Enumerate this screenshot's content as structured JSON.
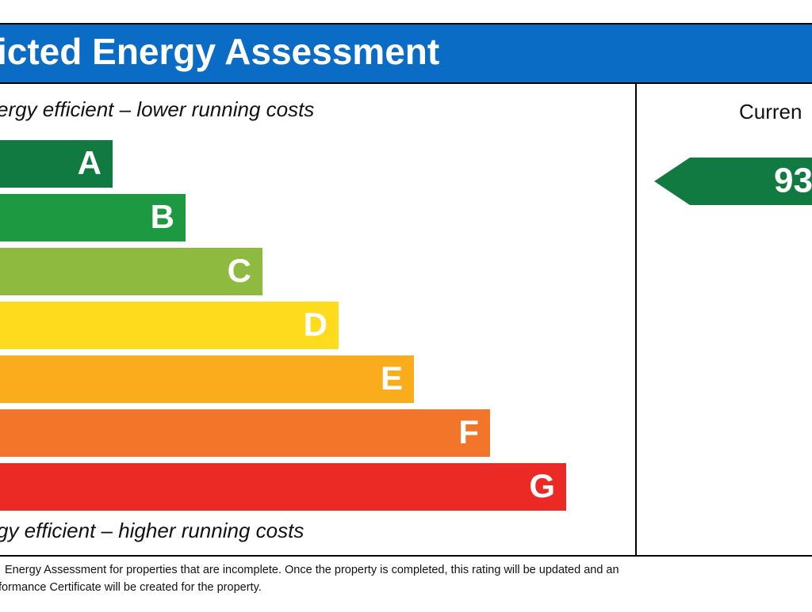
{
  "header": {
    "title": "icted Energy Assessment"
  },
  "top_note": "ergy efficient – lower running costs",
  "bottom_note": "gy efficient – higher running costs",
  "bands": [
    {
      "letter": "A",
      "color": "#117a41"
    },
    {
      "letter": "B",
      "color": "#1d9a41"
    },
    {
      "letter": "C",
      "color": "#8dba3f"
    },
    {
      "letter": "D",
      "color": "#fedc1d"
    },
    {
      "letter": "E",
      "color": "#fbac1c"
    },
    {
      "letter": "F",
      "color": "#f27529"
    },
    {
      "letter": "G",
      "color": "#ec2a25"
    }
  ],
  "current": {
    "label": "Curren",
    "value": 93,
    "color": "#117a41"
  },
  "footer": [
    "Energy Assessment for properties that are incomplete. Once the property is completed, this rating will be updated and an",
    "formance Certificate will be created for the property."
  ]
}
